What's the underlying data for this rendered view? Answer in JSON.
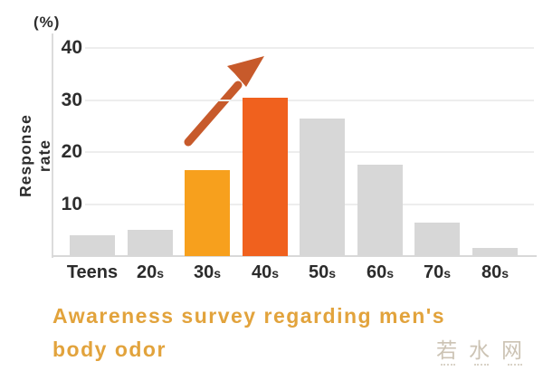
{
  "chart_data": {
    "type": "bar",
    "title": "Awareness survey regarding men's body odor",
    "title_lines": [
      "Awareness survey regarding men's",
      "body odor"
    ],
    "unit_label": "(%)",
    "ylabel": "Response rate",
    "xlabel": "",
    "categories": [
      "Teens",
      "20s",
      "30s",
      "40s",
      "50s",
      "60s",
      "70s",
      "80s"
    ],
    "values": [
      4,
      5,
      16.5,
      30.5,
      26.5,
      17.5,
      6.5,
      1.5
    ],
    "bar_colors": [
      "#d7d7d7",
      "#d7d7d7",
      "#f7a01d",
      "#f0611e",
      "#d7d7d7",
      "#d7d7d7",
      "#d7d7d7",
      "#d7d7d7"
    ],
    "highlight_colors": {
      "amber": "#f7a01d",
      "orange": "#f0611e",
      "neutral": "#d7d7d7"
    },
    "yticks": [
      10,
      20,
      30,
      40
    ],
    "ylim": [
      0,
      40
    ],
    "grid": true,
    "legend": false,
    "annotation": "rising-trend-arrow",
    "annotation_color": "#c75a2b",
    "caption_color": "#e2a33c"
  },
  "watermark": {
    "text": "若水网"
  }
}
